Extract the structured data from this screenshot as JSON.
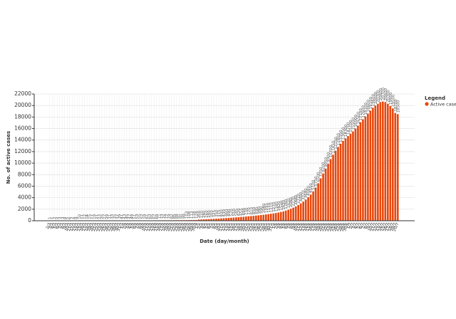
{
  "chart_data": {
    "type": "bar",
    "y_label": "No. of active cases",
    "x_label": "Date (day/month)",
    "legend_title": "Legend",
    "series": [
      {
        "name": "Active cases",
        "color": "#e8490f",
        "values": [
          1,
          1,
          2,
          2,
          3,
          3,
          4,
          5,
          6,
          7,
          8,
          9,
          10,
          11,
          12,
          14,
          15,
          17,
          19,
          21,
          23,
          25,
          27,
          29,
          31,
          33,
          35,
          37,
          39,
          41,
          43,
          45,
          47,
          49,
          51,
          53,
          55,
          57,
          59,
          61,
          63,
          65,
          67,
          69,
          71,
          73,
          75,
          77,
          79,
          82,
          85,
          88,
          91,
          95,
          99,
          103,
          108,
          113,
          118,
          124,
          200,
          220,
          240,
          260,
          280,
          300,
          325,
          350,
          375,
          400,
          430,
          460,
          490,
          520,
          550,
          585,
          620,
          655,
          690,
          730,
          770,
          810,
          850,
          895,
          940,
          990,
          1040,
          1095,
          1150,
          1210,
          1270,
          1340,
          1420,
          1520,
          1630,
          1760,
          1910,
          2080,
          2270,
          2480,
          2720,
          3000,
          3320,
          3680,
          4080,
          4550,
          5100,
          5750,
          6500,
          7350,
          8200,
          9050,
          9900,
          10700,
          11450,
          12150,
          12800,
          13350,
          13850,
          14300,
          14700,
          15100,
          15500,
          16000,
          16500,
          17100,
          17600,
          18100,
          18600,
          19100,
          19600,
          20000,
          20300,
          20600,
          20700,
          20600,
          20300,
          19900,
          19500,
          18700,
          18500
        ]
      }
    ],
    "categories": [
      "2/3",
      "3/3",
      "4/3",
      "5/3",
      "6/3",
      "7/3",
      "8/3",
      "9/3",
      "10/3",
      "11/3",
      "12/3",
      "13/3",
      "14/3",
      "15/3",
      "16/3",
      "17/3",
      "18/3",
      "19/3",
      "20/3",
      "21/3",
      "22/3",
      "23/3",
      "24/3",
      "25/3",
      "26/3",
      "27/3",
      "28/3",
      "29/3",
      "30/3",
      "31/3",
      "1/4",
      "2/4",
      "3/4",
      "4/4",
      "5/4",
      "6/4",
      "7/4",
      "8/4",
      "9/4",
      "10/4",
      "11/4",
      "12/4",
      "13/4",
      "14/4",
      "15/4",
      "16/4",
      "17/4",
      "18/4",
      "19/4",
      "20/4",
      "21/4",
      "22/4",
      "23/4",
      "24/4",
      "25/4",
      "26/4",
      "27/4",
      "28/4",
      "29/4",
      "30/4",
      "1/5",
      "2/5",
      "3/5",
      "4/5",
      "5/5",
      "6/5",
      "7/5",
      "8/5",
      "9/5",
      "10/5",
      "11/5",
      "12/5",
      "13/5",
      "14/5",
      "15/5",
      "16/5",
      "17/5",
      "18/5",
      "19/5",
      "20/5",
      "21/5",
      "22/5",
      "23/5",
      "24/5",
      "25/5",
      "26/5",
      "27/5",
      "28/5",
      "29/5",
      "30/5",
      "31/5",
      "1/6",
      "2/6",
      "3/6",
      "4/6",
      "5/6",
      "6/6",
      "7/6",
      "8/6",
      "9/6",
      "10/6",
      "11/6",
      "12/6",
      "13/6",
      "14/6",
      "15/6",
      "16/6",
      "17/6",
      "18/6",
      "19/6",
      "20/6",
      "21/6",
      "22/6",
      "23/6",
      "24/6",
      "25/6",
      "26/6",
      "27/6",
      "28/6",
      "29/6",
      "30/6",
      "1/7",
      "2/7",
      "3/7",
      "4/7",
      "5/7",
      "6/7",
      "7/7",
      "8/7",
      "9/7",
      "10/7",
      "11/7",
      "12/7",
      "13/7",
      "14/7",
      "15/7",
      "16/7",
      "17/7",
      "18/7",
      "19/7",
      "20/7"
    ],
    "ylim": [
      0,
      22000
    ],
    "yticks": [
      0,
      2000,
      4000,
      6000,
      8000,
      10000,
      12000,
      14000,
      16000,
      18000,
      20000,
      22000
    ],
    "grid": true,
    "legend": "right"
  }
}
